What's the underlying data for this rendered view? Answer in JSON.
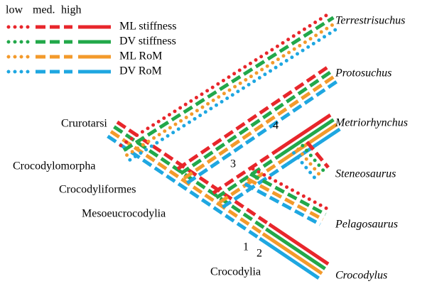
{
  "legend": {
    "levels": [
      "low",
      "med.",
      "high"
    ],
    "items": [
      "ML stiffness",
      "DV stiffness",
      "ML RoM",
      "DV RoM"
    ]
  },
  "taxa": [
    "Terrestrisuchus",
    "Protosuchus",
    "Metriorhynchus",
    "Steneosaurus",
    "Pelagosaurus",
    "Crocodylus"
  ],
  "clades": [
    "Crurotarsi",
    "Crocodylomorpha",
    "Crocodyliformes",
    "Mesoeucrocodylia",
    "Crocodylia"
  ],
  "node_numbers": [
    "1",
    "2",
    "3",
    "4"
  ]
}
